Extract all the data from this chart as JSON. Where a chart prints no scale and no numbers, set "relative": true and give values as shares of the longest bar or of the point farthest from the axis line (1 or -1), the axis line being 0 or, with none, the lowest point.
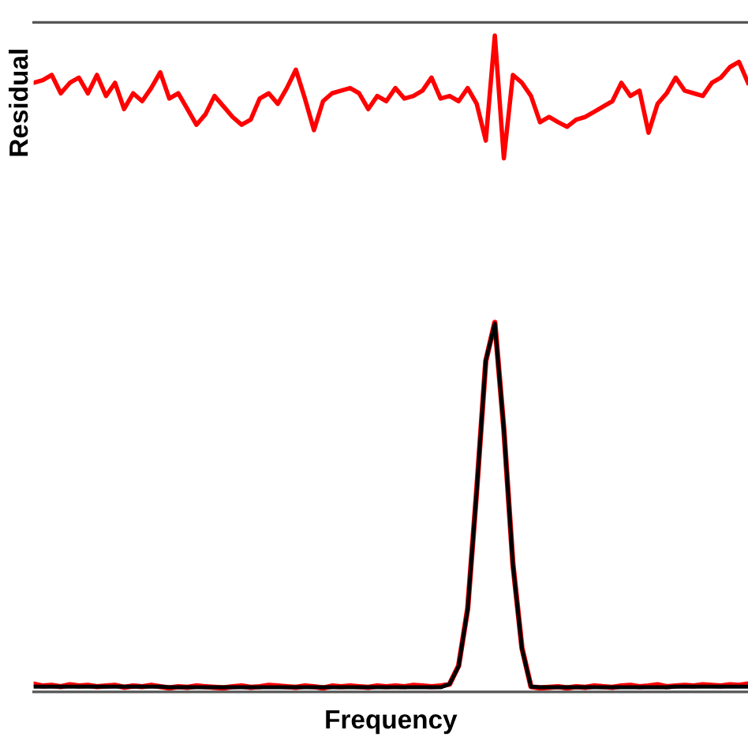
{
  "chart_data": {
    "type": "line",
    "relative": true,
    "xlabel": "Frequency",
    "ylabel": "Residual",
    "categories": [
      null,
      null,
      null,
      null,
      null,
      null,
      null,
      null,
      null,
      null,
      null,
      null,
      null,
      null,
      null,
      null,
      null,
      null,
      null,
      null,
      null,
      null,
      null,
      null,
      null,
      null,
      null,
      null,
      null,
      null,
      null,
      null,
      null,
      null,
      null,
      null,
      null,
      null,
      null,
      null,
      null,
      null,
      null,
      null,
      null,
      null,
      null,
      null,
      null,
      null,
      null,
      null,
      null,
      null,
      null,
      null,
      null,
      null,
      null,
      null,
      null,
      null,
      null,
      null,
      null,
      null,
      null,
      null,
      null,
      null,
      null,
      null,
      null,
      null,
      null,
      null,
      null,
      null,
      null,
      null
    ],
    "series": [
      {
        "color": "#ff0000",
        "values": [
          0.928,
          0.932,
          0.94,
          0.912,
          0.928,
          0.936,
          0.912,
          0.94,
          0.908,
          0.928,
          0.888,
          0.912,
          0.9,
          0.92,
          0.944,
          0.904,
          0.912,
          0.888,
          0.864,
          0.88,
          0.908,
          0.892,
          0.876,
          0.864,
          0.872,
          0.904,
          0.912,
          0.896,
          0.92,
          0.948,
          0.904,
          0.856,
          0.9,
          0.912,
          0.916,
          0.92,
          0.912,
          0.888,
          0.908,
          0.9,
          0.92,
          0.904,
          0.908,
          0.916,
          0.936,
          0.904,
          0.908,
          0.9,
          0.92,
          0.896,
          0.84,
          1.0,
          0.813,
          0.94,
          0.928,
          0.908,
          0.868,
          0.876,
          0.868,
          0.861,
          0.872,
          0.876,
          0.884,
          0.892,
          0.9,
          0.928,
          0.908,
          0.916,
          0.852,
          0.896,
          0.912,
          0.936,
          0.916,
          0.912,
          0.908,
          0.928,
          0.936,
          0.952,
          0.96,
          0.928
        ]
      },
      {
        "color": "#ff0000",
        "values": [
          0.012,
          0.009,
          0.01,
          0.008,
          0.011,
          0.009,
          0.01,
          0.008,
          0.009,
          0.01,
          0.007,
          0.009,
          0.008,
          0.01,
          0.008,
          0.006,
          0.008,
          0.007,
          0.009,
          0.008,
          0.007,
          0.006,
          0.008,
          0.009,
          0.007,
          0.008,
          0.01,
          0.009,
          0.008,
          0.007,
          0.009,
          0.008,
          0.006,
          0.009,
          0.008,
          0.009,
          0.008,
          0.007,
          0.009,
          0.008,
          0.009,
          0.008,
          0.01,
          0.009,
          0.008,
          0.009,
          0.012,
          0.04,
          0.127,
          0.308,
          0.504,
          0.563,
          0.4,
          0.195,
          0.067,
          0.008,
          0.006,
          0.007,
          0.008,
          0.006,
          0.008,
          0.007,
          0.009,
          0.008,
          0.007,
          0.009,
          0.01,
          0.008,
          0.009,
          0.011,
          0.008,
          0.009,
          0.01,
          0.009,
          0.011,
          0.01,
          0.009,
          0.011,
          0.01,
          0.012
        ]
      },
      {
        "color": "#000000",
        "values": [
          0.008,
          0.008,
          0.008,
          0.008,
          0.008,
          0.008,
          0.008,
          0.008,
          0.008,
          0.008,
          0.008,
          0.008,
          0.008,
          0.008,
          0.008,
          0.007,
          0.007,
          0.007,
          0.007,
          0.007,
          0.007,
          0.007,
          0.007,
          0.007,
          0.007,
          0.007,
          0.007,
          0.007,
          0.007,
          0.007,
          0.007,
          0.007,
          0.007,
          0.007,
          0.007,
          0.007,
          0.007,
          0.007,
          0.007,
          0.007,
          0.007,
          0.007,
          0.007,
          0.007,
          0.007,
          0.007,
          0.012,
          0.039,
          0.126,
          0.307,
          0.505,
          0.561,
          0.4,
          0.194,
          0.066,
          0.008,
          0.007,
          0.007,
          0.007,
          0.007,
          0.007,
          0.007,
          0.007,
          0.007,
          0.007,
          0.007,
          0.007,
          0.007,
          0.007,
          0.007,
          0.007,
          0.008,
          0.008,
          0.008,
          0.008,
          0.008,
          0.008,
          0.008,
          0.008,
          0.008
        ]
      }
    ]
  }
}
